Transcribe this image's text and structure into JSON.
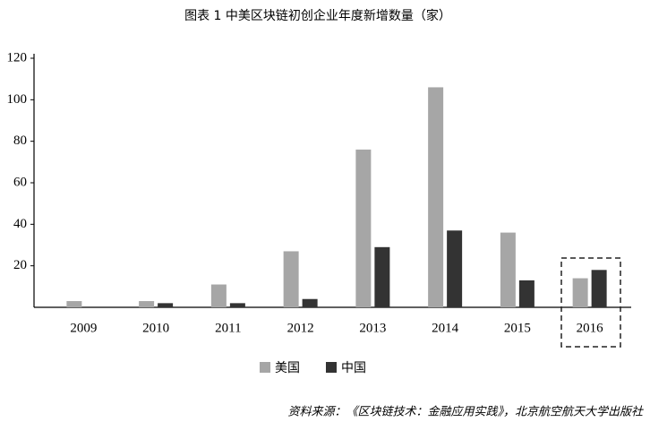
{
  "chart_data": {
    "type": "bar",
    "title": "图表 1 中美区块链初创企业年度新增数量（家）",
    "source": "资料来源：《区块链技术：金融应用实践》，北京航空航天大学出版社",
    "categories": [
      "2009",
      "2010",
      "2011",
      "2012",
      "2013",
      "2014",
      "2015",
      "2016"
    ],
    "series": [
      {
        "name": "美国",
        "color": "#a6a6a6",
        "values": [
          3,
          3,
          11,
          27,
          76,
          106,
          36,
          14
        ]
      },
      {
        "name": "中国",
        "color": "#333333",
        "values": [
          0,
          2,
          2,
          4,
          29,
          37,
          13,
          18
        ]
      }
    ],
    "ylim": [
      0,
      120
    ],
    "yticks": [
      20,
      40,
      60,
      80,
      100,
      120
    ],
    "grid": false
  }
}
